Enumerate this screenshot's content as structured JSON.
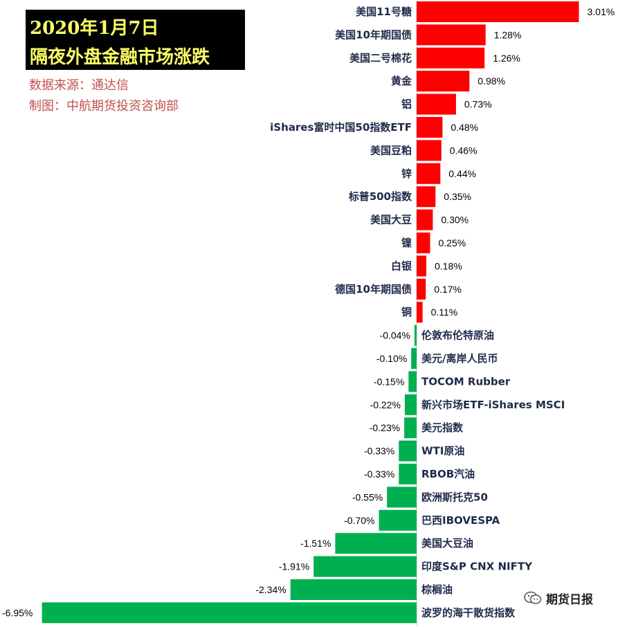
{
  "header": {
    "date": "2020年1月7日",
    "title": "隔夜外盘金融市场涨跌",
    "source": "数据来源：通达信",
    "maker": "制图：中航期货投资咨询部"
  },
  "watermark": {
    "text": "期货日报",
    "icon": "wechat-icon"
  },
  "colors": {
    "up": "#ff0000",
    "down": "#00b050",
    "axis": "#c8c8c8"
  },
  "chart_data": {
    "type": "bar",
    "orientation": "horizontal",
    "categories": [
      "美国11号糖",
      "美国10年期国债",
      "美国二号棉花",
      "黄金",
      "铝",
      "iShares富时中国50指数ETF",
      "美国豆粕",
      "锌",
      "标普500指数",
      "美国大豆",
      "镍",
      "白银",
      "德国10年期国债",
      "铜",
      "伦敦布伦特原油",
      "美元/离岸人民币",
      "TOCOM Rubber",
      "新兴市场ETF-iShares MSCI",
      "美元指数",
      "WTI原油",
      "RBOB汽油",
      "欧洲斯托克50",
      "巴西IBOVESPA",
      "美国大豆油",
      "印度S&P CNX NIFTY",
      "棕榈油",
      "波罗的海干散货指数"
    ],
    "values": [
      3.01,
      1.28,
      1.26,
      0.98,
      0.73,
      0.48,
      0.46,
      0.44,
      0.35,
      0.3,
      0.25,
      0.18,
      0.17,
      0.11,
      -0.04,
      -0.1,
      -0.15,
      -0.22,
      -0.23,
      -0.33,
      -0.33,
      -0.55,
      -0.7,
      -1.51,
      -1.91,
      -2.34,
      -6.95
    ],
    "value_labels": [
      "3.01%",
      "1.28%",
      "1.26%",
      "0.98%",
      "0.73%",
      "0.48%",
      "0.46%",
      "0.44%",
      "0.35%",
      "0.30%",
      "0.25%",
      "0.18%",
      "0.17%",
      "0.11%",
      "-0.04%",
      "-0.10%",
      "-0.15%",
      "-0.22%",
      "-0.23%",
      "-0.33%",
      "-0.33%",
      "-0.55%",
      "-0.70%",
      "-1.51%",
      "-1.91%",
      "-2.34%",
      "-6.95%"
    ],
    "xlim": [
      -6.95,
      3.01
    ],
    "grid": false,
    "legend": "none"
  }
}
